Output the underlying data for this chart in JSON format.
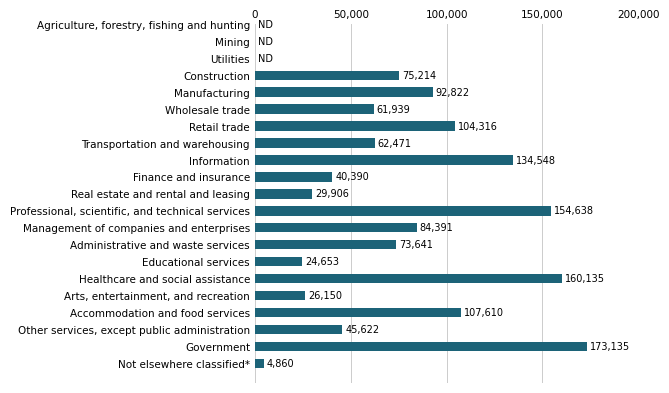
{
  "categories": [
    "Not elsewhere classified*",
    "Government",
    "Other services, except public administration",
    "Accommodation and food services",
    "Arts, entertainment, and recreation",
    "Healthcare and social assistance",
    "Educational services",
    "Administrative and waste services",
    "Management of companies and enterprises",
    "Professional, scientific, and technical services",
    "Real estate and rental and leasing",
    "Finance and insurance",
    "Information",
    "Transportation and warehousing",
    "Retail trade",
    "Wholesale trade",
    "Manufacturing",
    "Construction",
    "Utilities",
    "Mining",
    "Agriculture, forestry, fishing and hunting"
  ],
  "values": [
    4860,
    173135,
    45622,
    107610,
    26150,
    160135,
    24653,
    73641,
    84391,
    154638,
    29906,
    40390,
    134548,
    62471,
    104316,
    61939,
    92822,
    75214,
    null,
    null,
    null
  ],
  "labels": [
    "4,860",
    "173,135",
    "45,622",
    "107,610",
    "26,150",
    "160,135",
    "24,653",
    "73,641",
    "84,391",
    "154,638",
    "29,906",
    "40,390",
    "134,548",
    "62,471",
    "104,316",
    "61,939",
    "92,822",
    "75,214",
    "ND",
    "ND",
    "ND"
  ],
  "bar_color": "#1c6378",
  "background_color": "#ffffff",
  "xlim": [
    0,
    200000
  ],
  "xticks": [
    0,
    50000,
    100000,
    150000,
    200000
  ],
  "xtick_labels": [
    "0",
    "50,000",
    "100,000",
    "150,000",
    "200,000"
  ],
  "bar_height": 0.55,
  "label_fontsize": 7.0,
  "tick_fontsize": 7.5,
  "figsize": [
    6.5,
    4.03
  ],
  "dpi": 100
}
